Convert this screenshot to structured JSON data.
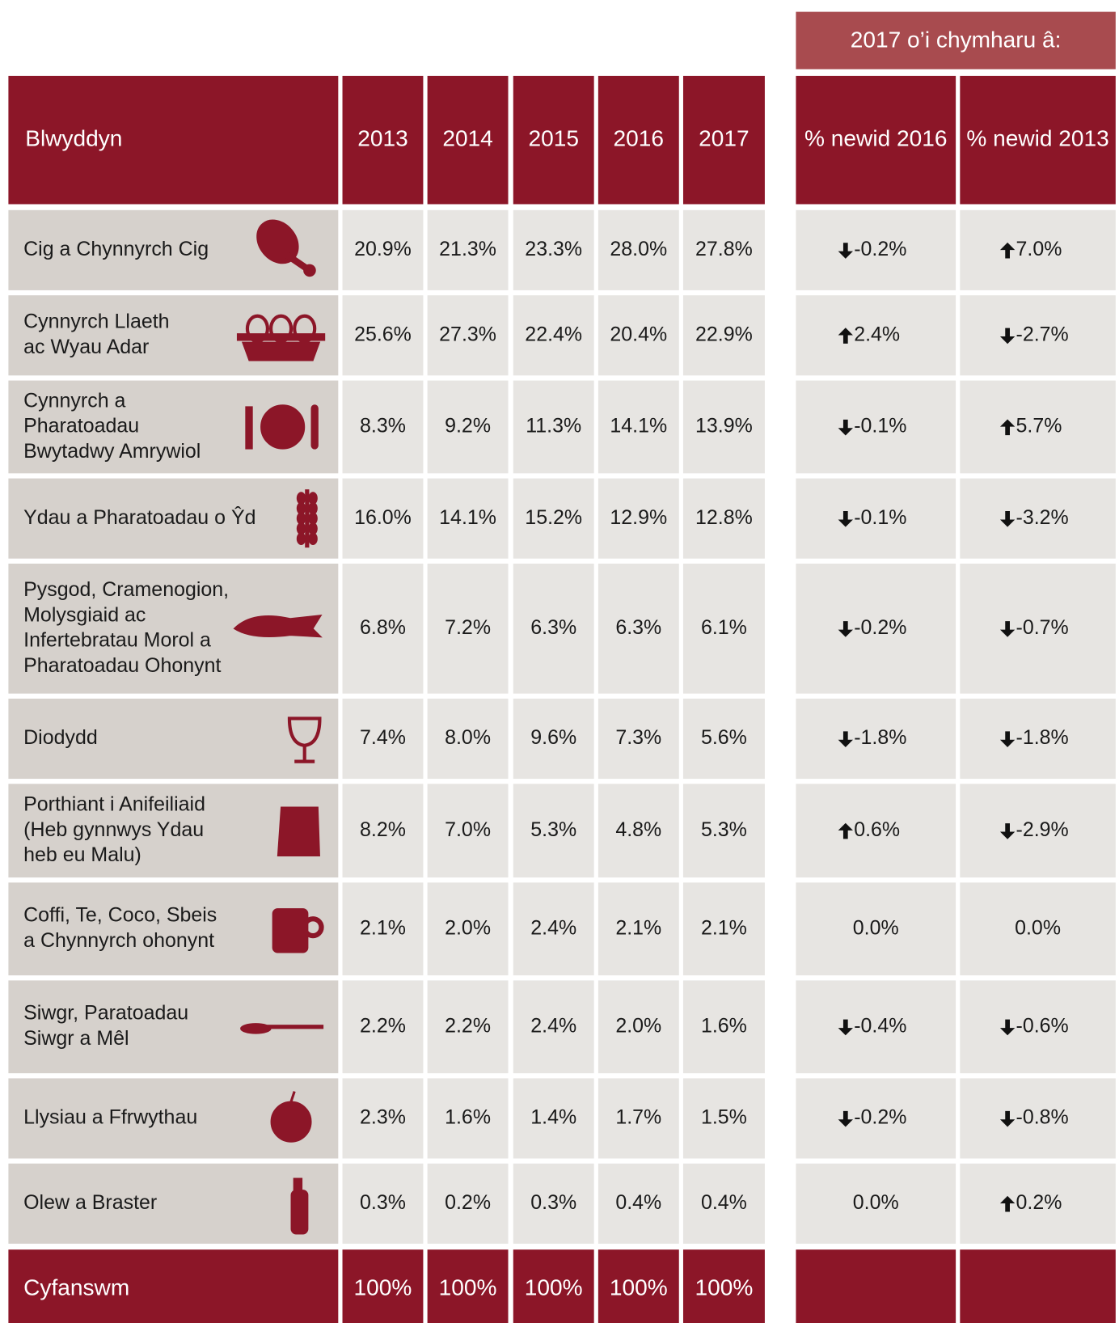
{
  "banner": "2017 o’i chymharu â:",
  "header": {
    "label": "Blwyddyn",
    "years": [
      "2013",
      "2014",
      "2015",
      "2016",
      "2017"
    ],
    "changes": [
      "% newid 2016",
      "% newid 2013"
    ]
  },
  "rows": [
    {
      "label": [
        "Cig a Chynnyrch Cig"
      ],
      "values": [
        "20.9%",
        "21.3%",
        "23.3%",
        "28.0%",
        "27.8%"
      ],
      "changes": [
        {
          "text": "-0.2%",
          "arrow": "down"
        },
        {
          "text": "7.0%",
          "arrow": "up"
        }
      ]
    },
    {
      "label": [
        "Cynnyrch Llaeth",
        "ac Wyau Adar"
      ],
      "values": [
        "25.6%",
        "27.3%",
        "22.4%",
        "20.4%",
        "22.9%"
      ],
      "changes": [
        {
          "text": "2.4%",
          "arrow": "up"
        },
        {
          "text": "-2.7%",
          "arrow": "down"
        }
      ]
    },
    {
      "label": [
        "Cynnyrch a",
        "Pharatoadau",
        "Bwytadwy Amrywiol"
      ],
      "values": [
        "8.3%",
        "9.2%",
        "11.3%",
        "14.1%",
        "13.9%"
      ],
      "changes": [
        {
          "text": "-0.1%",
          "arrow": "down"
        },
        {
          "text": "5.7%",
          "arrow": "up"
        }
      ]
    },
    {
      "label": [
        "Ydau a Pharatoadau o Ŷd"
      ],
      "values": [
        "16.0%",
        "14.1%",
        "15.2%",
        "12.9%",
        "12.8%"
      ],
      "changes": [
        {
          "text": "-0.1%",
          "arrow": "down"
        },
        {
          "text": "-3.2%",
          "arrow": "down"
        }
      ]
    },
    {
      "label": [
        "Pysgod, Cramenogion,",
        "Molysgiaid ac",
        "Infertebratau Morol  a",
        "Pharatoadau Ohonynt"
      ],
      "values": [
        "6.8%",
        "7.2%",
        "6.3%",
        "6.3%",
        "6.1%"
      ],
      "changes": [
        {
          "text": "-0.2%",
          "arrow": "down"
        },
        {
          "text": "-0.7%",
          "arrow": "down"
        }
      ]
    },
    {
      "label": [
        "Diodydd"
      ],
      "values": [
        "7.4%",
        "8.0%",
        "9.6%",
        "7.3%",
        "5.6%"
      ],
      "changes": [
        {
          "text": "-1.8%",
          "arrow": "down"
        },
        {
          "text": "-1.8%",
          "arrow": "down"
        }
      ]
    },
    {
      "label": [
        "Porthiant i Anifeiliaid",
        "(Heb gynnwys Ydau",
        "heb eu Malu)"
      ],
      "values": [
        "8.2%",
        "7.0%",
        "5.3%",
        "4.8%",
        "5.3%"
      ],
      "changes": [
        {
          "text": "0.6%",
          "arrow": "up"
        },
        {
          "text": "-2.9%",
          "arrow": "down"
        }
      ]
    },
    {
      "label": [
        "Coffi, Te, Coco, Sbeis",
        "a Chynnyrch ohonynt"
      ],
      "values": [
        "2.1%",
        "2.0%",
        "2.4%",
        "2.1%",
        "2.1%"
      ],
      "changes": [
        {
          "text": "0.0%",
          "arrow": null
        },
        {
          "text": "0.0%",
          "arrow": null
        }
      ]
    },
    {
      "label": [
        "Siwgr, Paratoadau",
        "Siwgr a Mêl"
      ],
      "values": [
        "2.2%",
        "2.2%",
        "2.4%",
        "2.0%",
        "1.6%"
      ],
      "changes": [
        {
          "text": "-0.4%",
          "arrow": "down"
        },
        {
          "text": "-0.6%",
          "arrow": "down"
        }
      ]
    },
    {
      "label": [
        "Llysiau a Ffrwythau"
      ],
      "values": [
        "2.3%",
        "1.6%",
        "1.4%",
        "1.7%",
        "1.5%"
      ],
      "changes": [
        {
          "text": "-0.2%",
          "arrow": "down"
        },
        {
          "text": "-0.8%",
          "arrow": "down"
        }
      ]
    },
    {
      "label": [
        "Olew a Braster"
      ],
      "values": [
        "0.3%",
        "0.2%",
        "0.3%",
        "0.4%",
        "0.4%"
      ],
      "changes": [
        {
          "text": "0.0%",
          "arrow": null
        },
        {
          "text": "0.2%",
          "arrow": "up"
        }
      ]
    }
  ],
  "total": {
    "label": "Cyfanswm",
    "values": [
      "100%",
      "100%",
      "100%",
      "100%",
      "100%"
    ]
  }
}
